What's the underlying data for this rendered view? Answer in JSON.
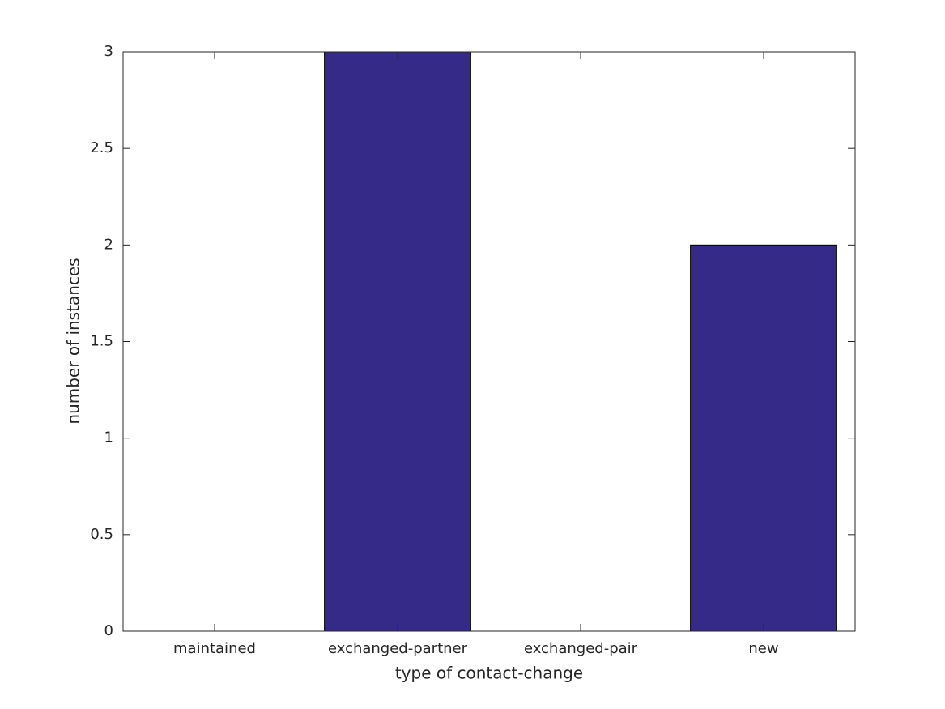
{
  "chart_data": {
    "type": "bar",
    "xlabel": "type of contact-change",
    "ylabel": "number of instances",
    "categories": [
      "maintained",
      "exchanged-partner",
      "exchanged-pair",
      "new"
    ],
    "values": [
      0,
      3,
      0,
      2
    ],
    "color": "#352a87",
    "ylim": [
      0,
      3
    ],
    "yticks": [
      0,
      0.5,
      1,
      1.5,
      2,
      2.5,
      3
    ],
    "grid": false
  }
}
